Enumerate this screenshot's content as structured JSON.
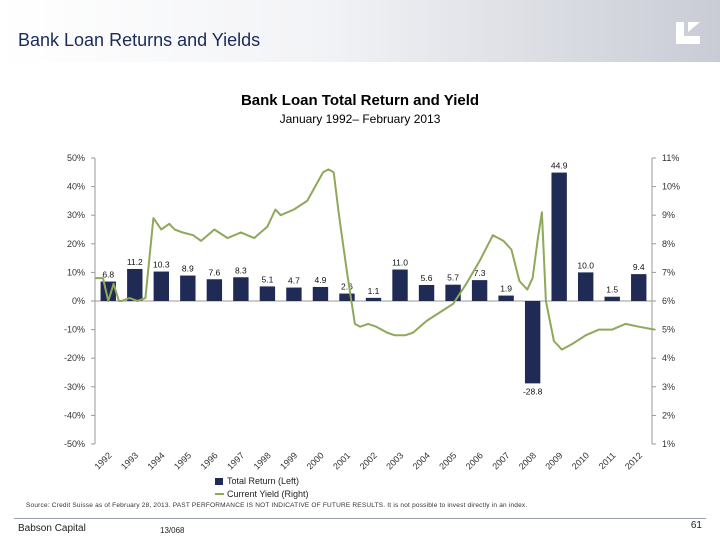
{
  "header": {
    "title": "Bank Loan Returns and Yields"
  },
  "footer": {
    "company": "Babson Capital",
    "code": "13/068",
    "page": "61"
  },
  "source_note": "Source: Credit Suisse as of February 28, 2013. PAST PERFORMANCE IS NOT INDICATIVE OF FUTURE RESULTS. It is not possible to invest directly in an index.",
  "colors": {
    "bar": "#1f2a55",
    "yield_line": "#8fa85a",
    "header_title": "#1a2a5a"
  },
  "chart_data": {
    "type": "bar",
    "title": "Bank Loan Total Return and Yield",
    "subtitle": "January 1992– February 2013",
    "categories": [
      "1992",
      "1993",
      "1994",
      "1995",
      "1996",
      "1997",
      "1998",
      "1999",
      "2000",
      "2001",
      "2002",
      "2003",
      "2004",
      "2005",
      "2006",
      "2007",
      "2008",
      "2009",
      "2010",
      "2011",
      "2012"
    ],
    "series": [
      {
        "name": "Total Return (Left)",
        "type": "bar",
        "axis": "left",
        "values": [
          6.8,
          11.2,
          10.3,
          8.9,
          7.6,
          8.3,
          5.1,
          4.7,
          4.9,
          2.6,
          1.1,
          11.0,
          5.6,
          5.7,
          7.3,
          1.9,
          -28.8,
          44.9,
          10.0,
          1.5,
          9.4
        ],
        "labels": [
          "6.8",
          "11.2",
          "10.3",
          "8.9",
          "7.6",
          "8.3",
          "5.1",
          "4.7",
          "4.9",
          "2.6",
          "1.1",
          "11.0",
          "5.6",
          "5.7",
          "7.3",
          "1.9",
          "-28.8",
          "44.9",
          "10.0",
          "1.5",
          "9.4"
        ]
      },
      {
        "name": "Current Yield (Right)",
        "type": "line",
        "axis": "right",
        "x": [
          1992.0,
          1992.3,
          1992.5,
          1992.7,
          1992.9,
          1993.0,
          1993.3,
          1993.6,
          1993.9,
          1994.2,
          1994.5,
          1994.8,
          1995.0,
          1995.3,
          1995.7,
          1996.0,
          1996.5,
          1997.0,
          1997.5,
          1998.0,
          1998.5,
          1998.8,
          1999.0,
          1999.5,
          2000.0,
          2000.3,
          2000.6,
          2000.8,
          2001.0,
          2001.2,
          2001.5,
          2001.8,
          2002.0,
          2002.3,
          2002.6,
          2003.0,
          2003.3,
          2003.7,
          2004.0,
          2004.5,
          2005.0,
          2005.5,
          2006.0,
          2006.5,
          2007.0,
          2007.4,
          2007.7,
          2008.0,
          2008.3,
          2008.5,
          2008.7,
          2008.85,
          2009.0,
          2009.3,
          2009.6,
          2010.0,
          2010.5,
          2011.0,
          2011.5,
          2012.0,
          2012.5,
          2013.1
        ],
        "values": [
          6.8,
          6.8,
          6.0,
          6.6,
          6.0,
          6.0,
          6.1,
          6.0,
          6.1,
          8.9,
          8.5,
          8.7,
          8.5,
          8.4,
          8.3,
          8.1,
          8.5,
          8.2,
          8.4,
          8.2,
          8.6,
          9.2,
          9.0,
          9.2,
          9.5,
          10.0,
          10.5,
          10.6,
          10.5,
          9.0,
          7.0,
          5.2,
          5.1,
          5.2,
          5.1,
          4.9,
          4.8,
          4.8,
          4.9,
          5.3,
          5.6,
          5.9,
          6.6,
          7.4,
          8.3,
          8.1,
          7.8,
          6.7,
          6.4,
          6.8,
          8.2,
          9.1,
          6.0,
          4.6,
          4.3,
          4.5,
          4.8,
          5.0,
          5.0,
          5.2,
          5.1,
          5.0
        ]
      }
    ],
    "left_axis": {
      "min": -50,
      "max": 50,
      "ticks": [
        "50%",
        "40%",
        "30%",
        "20%",
        "10%",
        "0%",
        "-10%",
        "-20%",
        "-30%",
        "-40%",
        "-50%"
      ]
    },
    "right_axis": {
      "min": 1,
      "max": 11,
      "ticks": [
        "11%",
        "10%",
        "9%",
        "8%",
        "7%",
        "6%",
        "5%",
        "4%",
        "3%",
        "2%",
        "1%"
      ]
    },
    "grid": false,
    "legend": {
      "position": "bottom-center",
      "entries": [
        "Total Return (Left)",
        "Current Yield (Right)"
      ]
    }
  }
}
